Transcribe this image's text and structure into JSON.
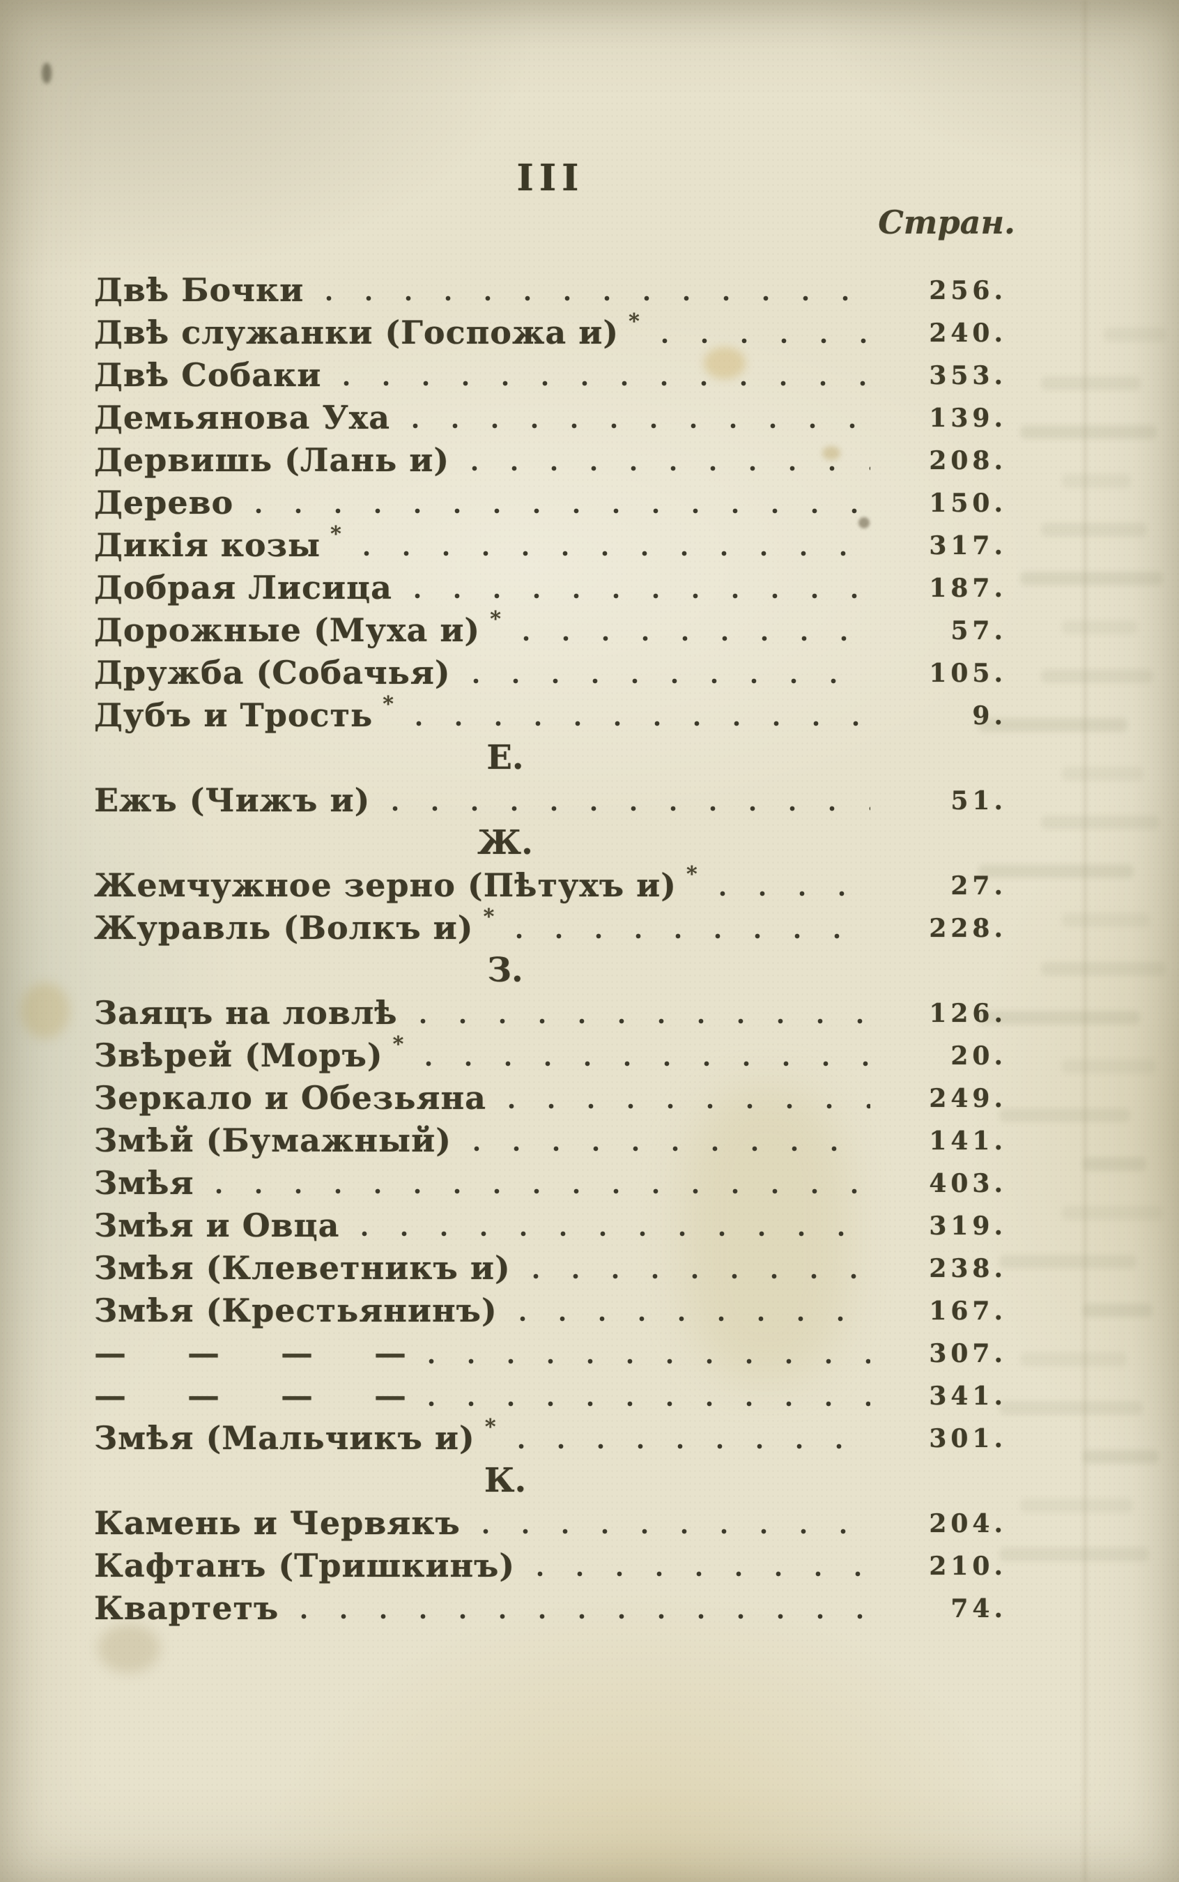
{
  "page": {
    "folio": "III",
    "column_header": "Стран.",
    "star_glyph": "*",
    "ink_color": "#3e3a28",
    "paper_color": "#e7e2cc"
  },
  "index": {
    "rows": [
      {
        "type": "entry",
        "title": "Двѣ Бочки",
        "star": false,
        "page": "256."
      },
      {
        "type": "entry",
        "title": "Двѣ служанки (Госпожа и)",
        "star": true,
        "page": "240."
      },
      {
        "type": "entry",
        "title": "Двѣ Собаки",
        "star": false,
        "page": "353."
      },
      {
        "type": "entry",
        "title": "Демьянова Уха",
        "star": false,
        "page": "139."
      },
      {
        "type": "entry",
        "title": "Дервишь (Лань и)",
        "star": false,
        "page": "208."
      },
      {
        "type": "entry",
        "title": "Дерево",
        "star": false,
        "page": "150."
      },
      {
        "type": "entry",
        "title": "Дикія козы",
        "star": true,
        "page": "317."
      },
      {
        "type": "entry",
        "title": "Добрая Лисица",
        "star": false,
        "page": "187."
      },
      {
        "type": "entry",
        "title": "Дорожные (Муха и)",
        "star": true,
        "page": "57."
      },
      {
        "type": "entry",
        "title": "Дружба (Собачья)",
        "star": false,
        "page": "105."
      },
      {
        "type": "entry",
        "title": "Дубъ и Трость",
        "star": true,
        "page": "9."
      },
      {
        "type": "letter",
        "label": "Е."
      },
      {
        "type": "entry",
        "title": "Ежъ (Чижъ и)",
        "star": false,
        "page": "51."
      },
      {
        "type": "letter",
        "label": "Ж."
      },
      {
        "type": "entry",
        "title": "Жемчужное зерно (Пѣтухъ и)",
        "star": true,
        "page": "27."
      },
      {
        "type": "entry",
        "title": "Журавль (Волкъ и)",
        "star": true,
        "page": "228."
      },
      {
        "type": "letter",
        "label": "З."
      },
      {
        "type": "entry",
        "title": "Заяцъ на ловлѣ",
        "star": false,
        "page": "126."
      },
      {
        "type": "entry",
        "title": "Звѣрей (Моръ)",
        "star": true,
        "page": "20."
      },
      {
        "type": "entry",
        "title": "Зеркало и Обезьяна",
        "star": false,
        "page": "249."
      },
      {
        "type": "entry",
        "title": "Змѣй (Бумажный)",
        "star": false,
        "page": "141."
      },
      {
        "type": "entry",
        "title": "Змѣя",
        "star": false,
        "page": "403."
      },
      {
        "type": "entry",
        "title": "Змѣя и Овца",
        "star": false,
        "page": "319."
      },
      {
        "type": "entry",
        "title": "Змѣя (Клеветникъ и)",
        "star": false,
        "page": "238."
      },
      {
        "type": "entry",
        "title": "Змѣя (Крестьянинъ)",
        "star": false,
        "page": "167."
      },
      {
        "type": "ditto",
        "dashes": "— — — —",
        "page": "307."
      },
      {
        "type": "ditto",
        "dashes": "— — — —",
        "page": "341."
      },
      {
        "type": "entry",
        "title": "Змѣя (Мальчикъ и)",
        "star": true,
        "page": "301."
      },
      {
        "type": "letter",
        "label": "К."
      },
      {
        "type": "entry",
        "title": "Камень и Червякъ",
        "star": false,
        "page": "204."
      },
      {
        "type": "entry",
        "title": "Кафтанъ (Тришкинъ)",
        "star": false,
        "page": "210."
      },
      {
        "type": "entry",
        "title": "Квартетъ",
        "star": false,
        "page": "74."
      }
    ]
  }
}
